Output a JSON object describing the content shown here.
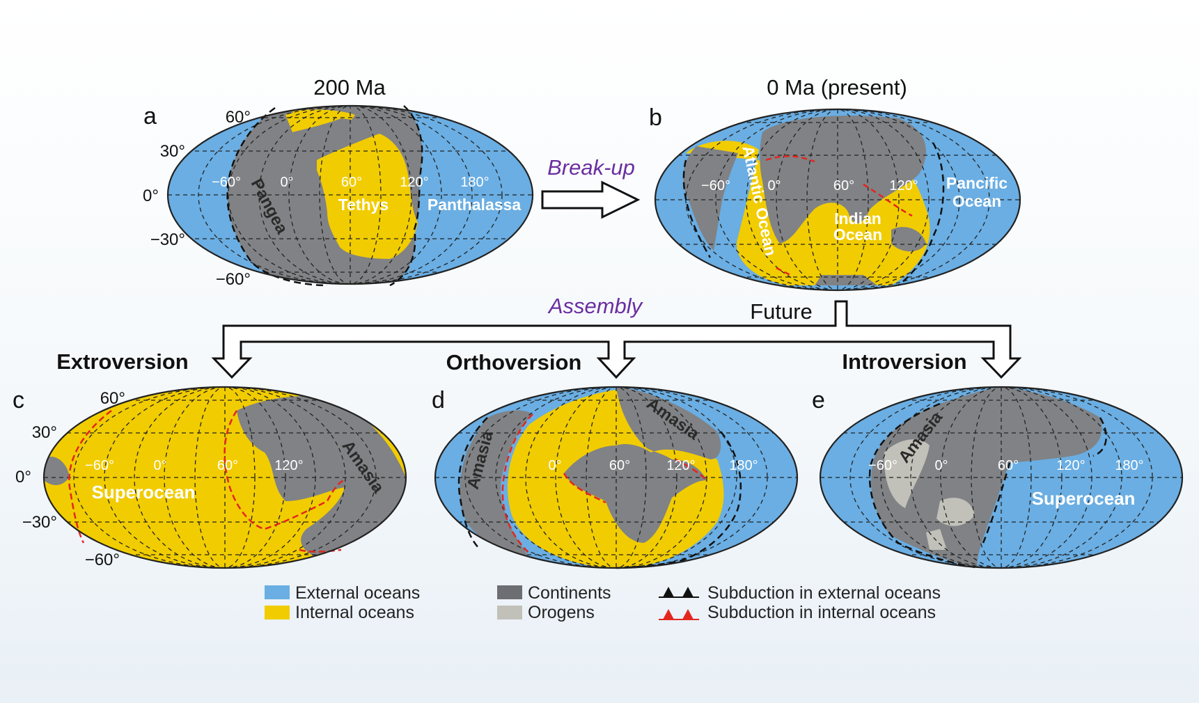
{
  "colors": {
    "external_ocean": "#6aaee3",
    "internal_ocean": "#f1cc00",
    "continent": "#808285",
    "orogen": "#c1c1b9",
    "subduction_external": "#111111",
    "subduction_internal": "#e3261f",
    "annotation_purple": "#6a2ea0"
  },
  "arrows": {
    "breakup": "Break-up",
    "assembly": "Assembly",
    "future": "Future"
  },
  "scenarios": {
    "extroversion": "Extroversion",
    "orthoversion": "Orthoversion",
    "introversion": "Introversion"
  },
  "panels": {
    "a": {
      "letter": "a",
      "title": "200 Ma",
      "lat_labels": [
        "60°",
        "30°",
        "0°",
        "−30°",
        "−60°"
      ],
      "lon_labels": [
        "−60°",
        "0°",
        "60°",
        "120°",
        "180°"
      ],
      "labels": {
        "pangea": "Pangea",
        "tethys": "Tethys",
        "panthalassa": "Panthalassa"
      }
    },
    "b": {
      "letter": "b",
      "title": "0 Ma (present)",
      "lon_labels": [
        "−60°",
        "0°",
        "60°",
        "120°"
      ],
      "labels": {
        "atlantic": "Atlantic Ocean",
        "indian_1": "Indian",
        "indian_2": "Ocean",
        "pacific_1": "Pancific",
        "pacific_2": "Ocean"
      }
    },
    "c": {
      "letter": "c",
      "lat_labels": [
        "60°",
        "30°",
        "0°",
        "−30°",
        "−60°"
      ],
      "lon_labels": [
        "−60°",
        "0°",
        "60°",
        "120°"
      ],
      "labels": {
        "superocean": "Superocean",
        "amasia": "Amasia"
      }
    },
    "d": {
      "letter": "d",
      "lon_labels": [
        "0°",
        "60°",
        "120°",
        "180°"
      ],
      "labels": {
        "amasia_1": "Amasia",
        "amasia_2": "Amasia"
      }
    },
    "e": {
      "letter": "e",
      "lon_labels": [
        "−60°",
        "0°",
        "60°",
        "120°",
        "180°"
      ],
      "labels": {
        "amasia": "Amasia",
        "superocean": "Superocean"
      }
    }
  },
  "legend": {
    "external_oceans": "External oceans",
    "internal_oceans": "Internal oceans",
    "continents": "Continents",
    "orogens": "Orogens",
    "subduction_external": "Subduction in external oceans",
    "subduction_internal": "Subduction in internal oceans"
  }
}
